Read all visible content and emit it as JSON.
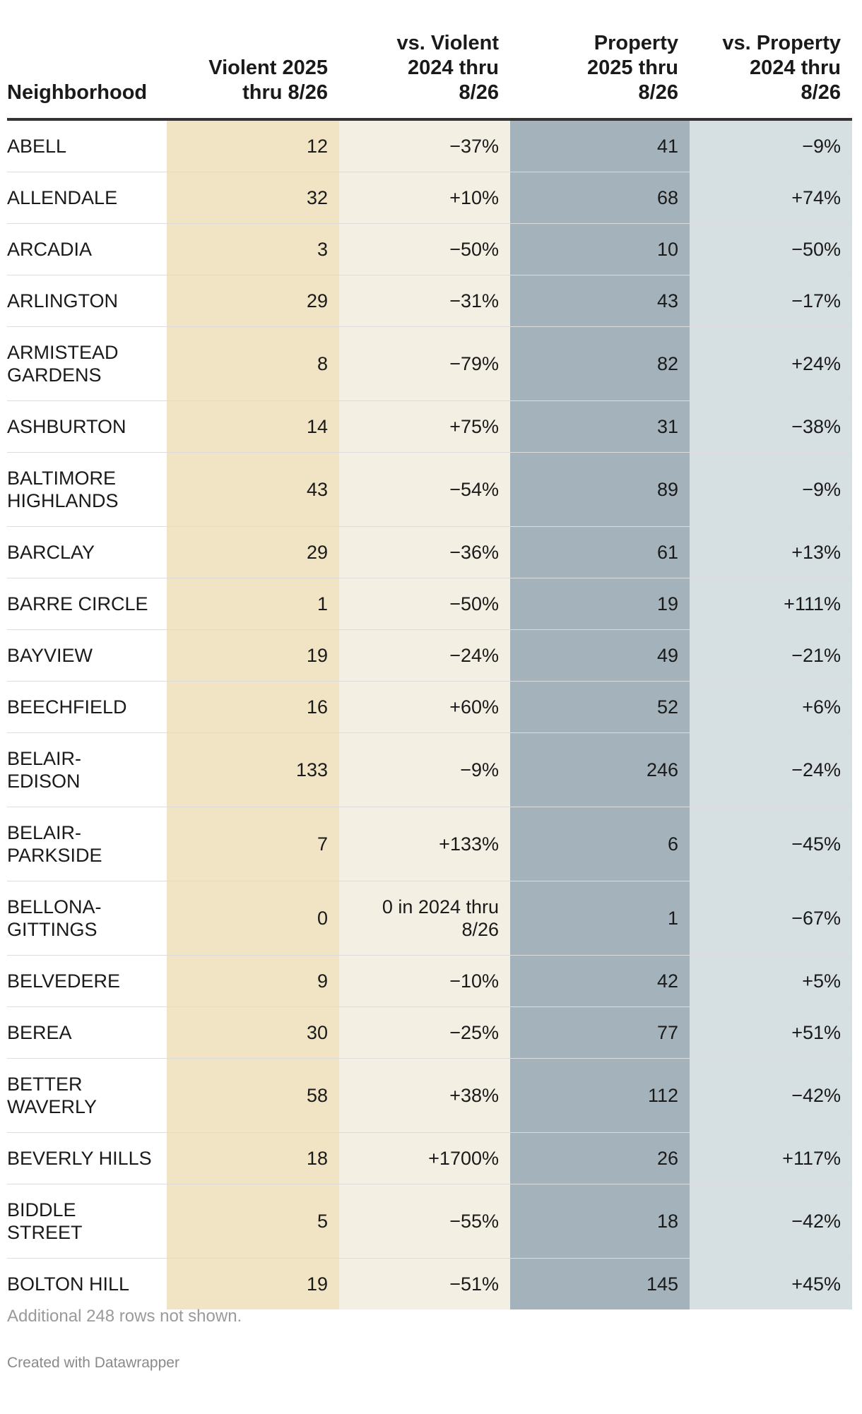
{
  "columns": {
    "neighborhood": "Neighborhood",
    "violent": [
      "Violent 2025",
      "thru 8/26"
    ],
    "vs_violent": [
      "vs. Violent",
      "2024 thru",
      "8/26"
    ],
    "property": [
      "Property",
      "2025 thru",
      "8/26"
    ],
    "vs_property": [
      "vs. Property",
      "2024 thru",
      "8/26"
    ]
  },
  "colors": {
    "violent": "#f1e4c4",
    "vs_violent": "#f3efe2",
    "property": "#a4b3bb",
    "vs_property": "#d6dfe1",
    "header_rule": "#333333"
  },
  "rows": [
    {
      "name": [
        "ABELL"
      ],
      "violent": "12",
      "vs_violent": [
        "−37%"
      ],
      "property": "41",
      "vs_property": "−9%"
    },
    {
      "name": [
        "ALLENDALE"
      ],
      "violent": "32",
      "vs_violent": [
        "+10%"
      ],
      "property": "68",
      "vs_property": "+74%"
    },
    {
      "name": [
        "ARCADIA"
      ],
      "violent": "3",
      "vs_violent": [
        "−50%"
      ],
      "property": "10",
      "vs_property": "−50%"
    },
    {
      "name": [
        "ARLINGTON"
      ],
      "violent": "29",
      "vs_violent": [
        "−31%"
      ],
      "property": "43",
      "vs_property": "−17%"
    },
    {
      "name": [
        "ARMISTEAD",
        "GARDENS"
      ],
      "violent": "8",
      "vs_violent": [
        "−79%"
      ],
      "property": "82",
      "vs_property": "+24%"
    },
    {
      "name": [
        "ASHBURTON"
      ],
      "violent": "14",
      "vs_violent": [
        "+75%"
      ],
      "property": "31",
      "vs_property": "−38%"
    },
    {
      "name": [
        "BALTIMORE",
        "HIGHLANDS"
      ],
      "violent": "43",
      "vs_violent": [
        "−54%"
      ],
      "property": "89",
      "vs_property": "−9%"
    },
    {
      "name": [
        "BARCLAY"
      ],
      "violent": "29",
      "vs_violent": [
        "−36%"
      ],
      "property": "61",
      "vs_property": "+13%"
    },
    {
      "name": [
        "BARRE CIRCLE"
      ],
      "violent": "1",
      "vs_violent": [
        "−50%"
      ],
      "property": "19",
      "vs_property": "+111%"
    },
    {
      "name": [
        "BAYVIEW"
      ],
      "violent": "19",
      "vs_violent": [
        "−24%"
      ],
      "property": "49",
      "vs_property": "−21%"
    },
    {
      "name": [
        "BEECHFIELD"
      ],
      "violent": "16",
      "vs_violent": [
        "+60%"
      ],
      "property": "52",
      "vs_property": "+6%"
    },
    {
      "name": [
        "BELAIR-",
        "EDISON"
      ],
      "violent": "133",
      "vs_violent": [
        "−9%"
      ],
      "property": "246",
      "vs_property": "−24%"
    },
    {
      "name": [
        "BELAIR-",
        "PARKSIDE"
      ],
      "violent": "7",
      "vs_violent": [
        "+133%"
      ],
      "property": "6",
      "vs_property": "−45%"
    },
    {
      "name": [
        "BELLONA-",
        "GITTINGS"
      ],
      "violent": "0",
      "vs_violent": [
        "0 in 2024 thru",
        "8/26"
      ],
      "property": "1",
      "vs_property": "−67%"
    },
    {
      "name": [
        "BELVEDERE"
      ],
      "violent": "9",
      "vs_violent": [
        "−10%"
      ],
      "property": "42",
      "vs_property": "+5%"
    },
    {
      "name": [
        "BEREA"
      ],
      "violent": "30",
      "vs_violent": [
        "−25%"
      ],
      "property": "77",
      "vs_property": "+51%"
    },
    {
      "name": [
        "BETTER",
        "WAVERLY"
      ],
      "violent": "58",
      "vs_violent": [
        "+38%"
      ],
      "property": "112",
      "vs_property": "−42%"
    },
    {
      "name": [
        "BEVERLY HILLS"
      ],
      "violent": "18",
      "vs_violent": [
        "+1700%"
      ],
      "property": "26",
      "vs_property": "+117%"
    },
    {
      "name": [
        "BIDDLE",
        "STREET"
      ],
      "violent": "5",
      "vs_violent": [
        "−55%"
      ],
      "property": "18",
      "vs_property": "−42%"
    },
    {
      "name": [
        "BOLTON HILL"
      ],
      "violent": "19",
      "vs_violent": [
        "−51%"
      ],
      "property": "145",
      "vs_property": "+45%"
    }
  ],
  "chart_data": {
    "type": "table",
    "columns": [
      "Neighborhood",
      "Violent 2025 thru 8/26",
      "vs. Violent 2024 thru 8/26",
      "Property 2025 thru 8/26",
      "vs. Property 2024 thru 8/26"
    ],
    "rows": [
      [
        "ABELL",
        12,
        "−37%",
        41,
        "−9%"
      ],
      [
        "ALLENDALE",
        32,
        "+10%",
        68,
        "+74%"
      ],
      [
        "ARCADIA",
        3,
        "−50%",
        10,
        "−50%"
      ],
      [
        "ARLINGTON",
        29,
        "−31%",
        43,
        "−17%"
      ],
      [
        "ARMISTEAD GARDENS",
        8,
        "−79%",
        82,
        "+24%"
      ],
      [
        "ASHBURTON",
        14,
        "+75%",
        31,
        "−38%"
      ],
      [
        "BALTIMORE HIGHLANDS",
        43,
        "−54%",
        89,
        "−9%"
      ],
      [
        "BARCLAY",
        29,
        "−36%",
        61,
        "+13%"
      ],
      [
        "BARRE CIRCLE",
        1,
        "−50%",
        19,
        "+111%"
      ],
      [
        "BAYVIEW",
        19,
        "−24%",
        49,
        "−21%"
      ],
      [
        "BEECHFIELD",
        16,
        "+60%",
        52,
        "+6%"
      ],
      [
        "BELAIR-EDISON",
        133,
        "−9%",
        246,
        "−24%"
      ],
      [
        "BELAIR-PARKSIDE",
        7,
        "+133%",
        6,
        "−45%"
      ],
      [
        "BELLONA-GITTINGS",
        0,
        "0 in 2024 thru 8/26",
        1,
        "−67%"
      ],
      [
        "BELVEDERE",
        9,
        "−10%",
        42,
        "+5%"
      ],
      [
        "BEREA",
        30,
        "−25%",
        77,
        "+51%"
      ],
      [
        "BETTER WAVERLY",
        58,
        "+38%",
        112,
        "−42%"
      ],
      [
        "BEVERLY HILLS",
        18,
        "+1700%",
        26,
        "+117%"
      ],
      [
        "BIDDLE STREET",
        5,
        "−55%",
        18,
        "−42%"
      ],
      [
        "BOLTON HILL",
        19,
        "−51%",
        145,
        "+45%"
      ]
    ]
  },
  "footer": {
    "note": "Additional 248 rows not shown.",
    "credit": "Created with Datawrapper"
  }
}
